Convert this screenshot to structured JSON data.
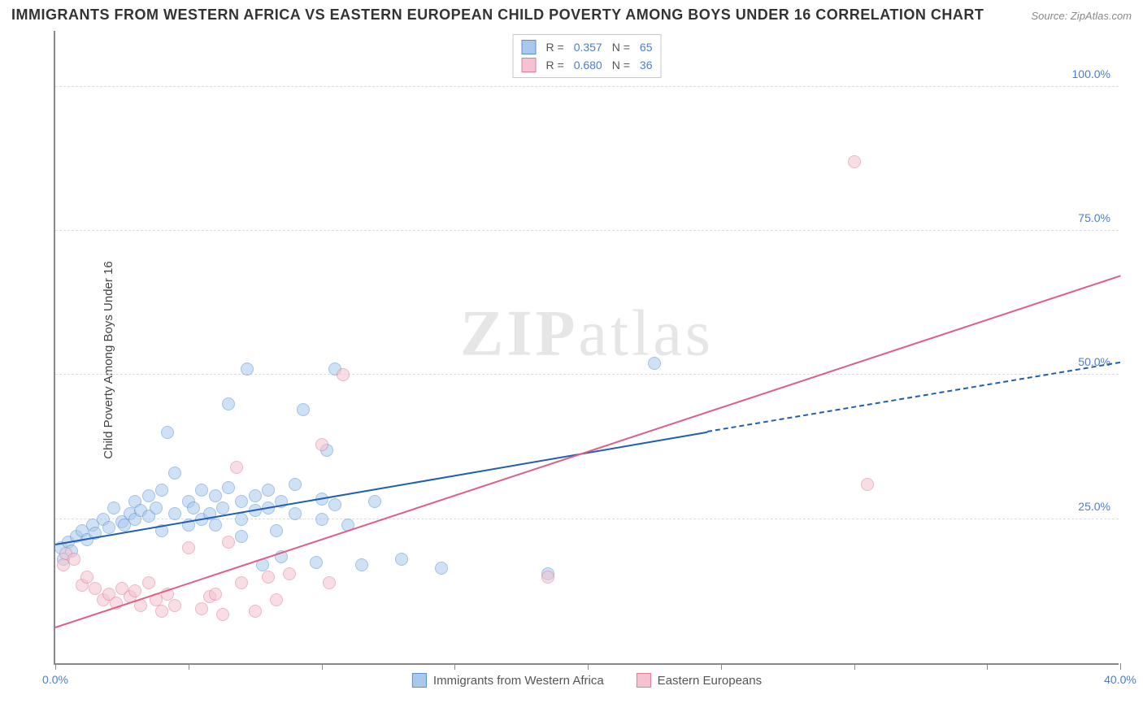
{
  "title": "IMMIGRANTS FROM WESTERN AFRICA VS EASTERN EUROPEAN CHILD POVERTY AMONG BOYS UNDER 16 CORRELATION CHART",
  "source": "Source: ZipAtlas.com",
  "y_label": "Child Poverty Among Boys Under 16",
  "watermark_a": "ZIP",
  "watermark_b": "atlas",
  "chart": {
    "type": "scatter",
    "background_color": "#ffffff",
    "grid_color": "#dddddd",
    "axis_color": "#888888",
    "xlim": [
      0,
      40
    ],
    "ylim": [
      0,
      110
    ],
    "x_ticks": [
      0,
      5,
      10,
      15,
      20,
      25,
      30,
      35,
      40
    ],
    "x_tick_labels": {
      "0": "0.0%",
      "40": "40.0%"
    },
    "y_grid": [
      25,
      50,
      75,
      100
    ],
    "y_tick_labels": {
      "25": "25.0%",
      "50": "50.0%",
      "75": "75.0%",
      "100": "100.0%"
    },
    "marker_radius": 8,
    "marker_opacity": 0.55,
    "title_fontsize": 18,
    "label_fontsize": 15,
    "tick_fontsize": 14,
    "tick_color": "#4a7ecc",
    "series": [
      {
        "id": "blue",
        "name": "Immigrants from Western Africa",
        "fill": "#a9c9ec",
        "stroke": "#5b8fd0",
        "line_color": "#1f5fb0",
        "r": "0.357",
        "n": "65",
        "reg_from": [
          0,
          20.5
        ],
        "reg_to_solid": [
          24.5,
          40
        ],
        "reg_to_dash": [
          40,
          52
        ],
        "points": [
          [
            0.2,
            20
          ],
          [
            0.3,
            18
          ],
          [
            0.5,
            21
          ],
          [
            0.6,
            19.5
          ],
          [
            0.8,
            22
          ],
          [
            1.0,
            23
          ],
          [
            1.2,
            21.5
          ],
          [
            1.4,
            24
          ],
          [
            1.5,
            22.5
          ],
          [
            1.8,
            25
          ],
          [
            2.0,
            23.5
          ],
          [
            2.2,
            27
          ],
          [
            2.5,
            24.5
          ],
          [
            2.6,
            24
          ],
          [
            2.8,
            26
          ],
          [
            3.0,
            25
          ],
          [
            3.0,
            28
          ],
          [
            3.2,
            26.5
          ],
          [
            3.5,
            25.5
          ],
          [
            3.5,
            29
          ],
          [
            3.8,
            27
          ],
          [
            4.0,
            23
          ],
          [
            4.0,
            30
          ],
          [
            4.2,
            40
          ],
          [
            4.5,
            26
          ],
          [
            4.5,
            33
          ],
          [
            5.0,
            24
          ],
          [
            5.0,
            28
          ],
          [
            5.2,
            27
          ],
          [
            5.5,
            30
          ],
          [
            5.5,
            25
          ],
          [
            5.8,
            26
          ],
          [
            6.0,
            29
          ],
          [
            6.0,
            24
          ],
          [
            6.3,
            27
          ],
          [
            6.5,
            30.5
          ],
          [
            6.5,
            45
          ],
          [
            7.0,
            25
          ],
          [
            7.0,
            28
          ],
          [
            7.0,
            22
          ],
          [
            7.2,
            51
          ],
          [
            7.5,
            26.5
          ],
          [
            7.5,
            29
          ],
          [
            7.8,
            17
          ],
          [
            8.0,
            27
          ],
          [
            8.0,
            30
          ],
          [
            8.3,
            23
          ],
          [
            8.5,
            28
          ],
          [
            8.5,
            18.5
          ],
          [
            9.0,
            26
          ],
          [
            9.0,
            31
          ],
          [
            9.3,
            44
          ],
          [
            9.8,
            17.5
          ],
          [
            10.0,
            25
          ],
          [
            10.0,
            28.5
          ],
          [
            10.2,
            37
          ],
          [
            10.5,
            27.5
          ],
          [
            10.5,
            51
          ],
          [
            11.0,
            24
          ],
          [
            11.5,
            17
          ],
          [
            12.0,
            28
          ],
          [
            13.0,
            18
          ],
          [
            14.5,
            16.5
          ],
          [
            18.5,
            15.5
          ],
          [
            22.5,
            52
          ]
        ]
      },
      {
        "id": "pink",
        "name": "Eastern Europeans",
        "fill": "#f4c3cf",
        "stroke": "#e07c9a",
        "line_color": "#de5f85",
        "r": "0.680",
        "n": "36",
        "reg_from": [
          0,
          6
        ],
        "reg_to_solid": [
          40,
          67
        ],
        "reg_to_dash": null,
        "points": [
          [
            0.3,
            17
          ],
          [
            0.4,
            19
          ],
          [
            0.7,
            18
          ],
          [
            1.0,
            13.5
          ],
          [
            1.2,
            15
          ],
          [
            1.5,
            13
          ],
          [
            1.8,
            11
          ],
          [
            2.0,
            12
          ],
          [
            2.3,
            10.5
          ],
          [
            2.5,
            13
          ],
          [
            2.8,
            11.5
          ],
          [
            3.0,
            12.5
          ],
          [
            3.2,
            10
          ],
          [
            3.5,
            14
          ],
          [
            3.8,
            11
          ],
          [
            4.0,
            9
          ],
          [
            4.2,
            12
          ],
          [
            4.5,
            10
          ],
          [
            5.0,
            20
          ],
          [
            5.5,
            9.5
          ],
          [
            5.8,
            11.5
          ],
          [
            6.0,
            12
          ],
          [
            6.3,
            8.5
          ],
          [
            6.5,
            21
          ],
          [
            6.8,
            34
          ],
          [
            7.0,
            14
          ],
          [
            7.5,
            9
          ],
          [
            8.0,
            15
          ],
          [
            8.3,
            11
          ],
          [
            8.8,
            15.5
          ],
          [
            10.0,
            38
          ],
          [
            10.3,
            14
          ],
          [
            10.8,
            50
          ],
          [
            18.5,
            15
          ],
          [
            30.0,
            87
          ],
          [
            30.5,
            31
          ]
        ]
      }
    ]
  },
  "legend_top": {
    "r_label": "R",
    "n_label": "N",
    "eq": "="
  }
}
